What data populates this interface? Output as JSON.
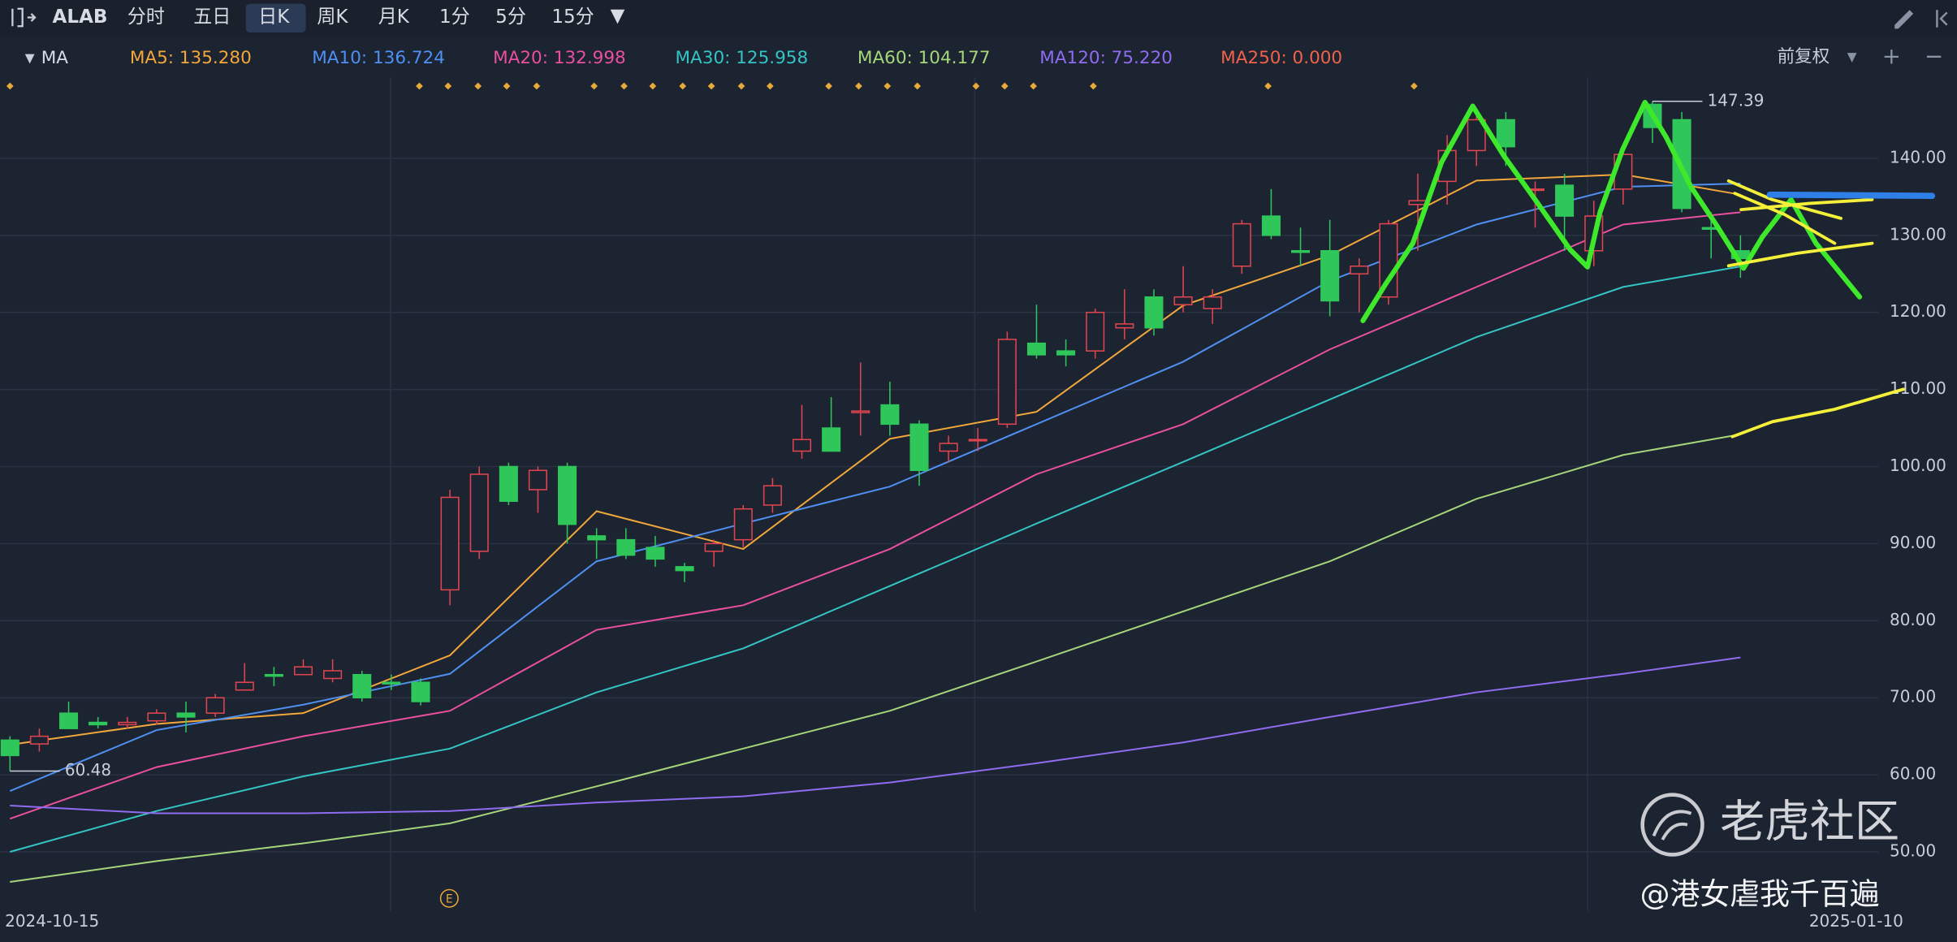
{
  "toolbar": {
    "symbol": "ALAB",
    "periods": [
      "分时",
      "五日",
      "日K",
      "周K",
      "月K",
      "1分",
      "5分",
      "15分"
    ],
    "active": "日K",
    "indicator": "MA",
    "adjust": "前复权"
  },
  "chart_data": {
    "type": "candlestick",
    "categories": [
      "2024-10-15",
      null,
      null,
      null,
      null,
      null,
      null,
      null,
      null,
      null,
      null,
      null,
      null,
      null,
      null,
      null,
      null,
      null,
      null,
      null,
      null,
      null,
      null,
      null,
      null,
      null,
      null,
      null,
      null,
      null,
      null,
      null,
      null,
      null,
      null,
      null,
      null,
      null,
      null,
      null,
      null,
      null,
      null,
      null,
      null,
      null,
      null,
      null,
      null,
      null,
      null,
      null,
      null,
      null,
      null,
      null,
      null,
      null,
      null,
      "2025-01-10"
    ],
    "open": [
      64.5,
      64,
      68,
      66.8,
      66.5,
      67,
      68,
      68,
      71,
      73,
      73,
      72.5,
      73,
      72,
      72,
      84,
      89,
      100,
      97,
      100,
      91,
      90.5,
      89.5,
      87,
      89,
      90.5,
      95,
      102,
      105,
      107,
      108,
      105.5,
      102,
      103.5,
      105.5,
      116,
      115,
      115,
      118,
      122,
      121,
      120.5,
      126,
      132.5,
      128,
      128,
      125,
      122,
      134,
      137,
      141,
      145,
      136,
      136.5,
      128,
      136,
      147,
      145,
      131,
      128
    ],
    "high": [
      65,
      66,
      69.5,
      67.5,
      67.5,
      68.5,
      69.5,
      70.5,
      74.5,
      74,
      75,
      75,
      73.5,
      73,
      72.5,
      97,
      100,
      100.5,
      100,
      100.5,
      92,
      92,
      91,
      87.5,
      90.5,
      95,
      98.5,
      108,
      109,
      113.5,
      111,
      106,
      104,
      105,
      117.5,
      121,
      116.5,
      120.5,
      123,
      123,
      126,
      123,
      132,
      136,
      131,
      132,
      127,
      132,
      138,
      143,
      146,
      146,
      137,
      138,
      134.5,
      141.5,
      147.39,
      146,
      133,
      130
    ],
    "low": [
      60.48,
      63,
      66,
      66,
      66,
      66.5,
      65.5,
      67.5,
      71,
      71.5,
      73,
      72,
      69.5,
      71,
      69,
      82,
      88,
      95,
      94,
      90,
      88,
      88,
      87,
      85,
      87,
      89.5,
      94,
      101,
      102,
      104,
      104,
      97.5,
      100.5,
      102,
      105,
      114,
      113,
      114,
      116.5,
      117,
      120,
      118.5,
      125,
      129.5,
      126,
      119.5,
      120,
      121,
      128,
      134,
      139,
      139,
      131,
      128,
      126,
      134,
      142,
      133,
      127,
      124.5
    ],
    "close": [
      62.5,
      65,
      66,
      66.5,
      66.8,
      68,
      67.5,
      70,
      72,
      72.8,
      74,
      73.5,
      70,
      71.8,
      69.5,
      96,
      99,
      95.5,
      99.5,
      92.5,
      90.5,
      88.5,
      88,
      86.5,
      90,
      94.5,
      97.5,
      103.5,
      102,
      107.2,
      105.5,
      99.5,
      103,
      103.5,
      116.5,
      114.5,
      114.5,
      120,
      118.5,
      118,
      122,
      122,
      131.5,
      130,
      127.8,
      121.5,
      126,
      131.5,
      134.5,
      141,
      145,
      141.5,
      136,
      132.5,
      132.5,
      140.5,
      144,
      133.5,
      130.8,
      127
    ],
    "up_color": "#e0454f",
    "down_color": "#2fc75a",
    "series": [
      {
        "name": "MA5: 135.280",
        "color": "#f2a73b",
        "x": [
          0,
          5,
          10,
          15,
          20,
          25,
          30,
          35,
          40,
          45,
          50,
          55,
          59
        ],
        "values": [
          63.9,
          66.6,
          68,
          75.5,
          94.2,
          89.3,
          103.6,
          107.1,
          120.9,
          127.4,
          137.1,
          137.9,
          135.28
        ]
      },
      {
        "name": "MA10: 136.724",
        "color": "#4f8ff0",
        "x": [
          0,
          5,
          10,
          15,
          20,
          25,
          30,
          35,
          40,
          45,
          50,
          55,
          59
        ],
        "values": [
          57.9,
          65.8,
          69.1,
          73.1,
          87.7,
          92.6,
          97.4,
          105.5,
          113.6,
          124.1,
          131.4,
          136.3,
          136.724
        ]
      },
      {
        "name": "MA20: 132.998",
        "color": "#ea4fa0",
        "x": [
          0,
          5,
          10,
          15,
          20,
          25,
          30,
          35,
          40,
          45,
          50,
          55,
          59
        ],
        "values": [
          54.3,
          61,
          65,
          68.3,
          78.8,
          82,
          89.3,
          99,
          105.5,
          115.2,
          123.3,
          131.4,
          132.998
        ]
      },
      {
        "name": "MA30: 125.958",
        "color": "#35c4c4",
        "x": [
          0,
          5,
          10,
          15,
          20,
          25,
          30,
          35,
          40,
          45,
          50,
          55,
          59
        ],
        "values": [
          50,
          55.3,
          59.8,
          63.4,
          70.7,
          76.4,
          84.5,
          92.6,
          100.6,
          108.7,
          116.8,
          123.3,
          125.958
        ]
      },
      {
        "name": "MA60: 104.177",
        "color": "#a5d67a",
        "x": [
          0,
          5,
          10,
          15,
          20,
          25,
          30,
          35,
          40,
          45,
          50,
          55,
          59
        ],
        "values": [
          46.1,
          48.8,
          51.1,
          53.7,
          58.5,
          63.4,
          68.3,
          74.7,
          81.2,
          87.7,
          95.8,
          101.5,
          104.177
        ]
      },
      {
        "name": "MA120: 75.220",
        "color": "#8f6cf0",
        "x": [
          0,
          5,
          10,
          15,
          20,
          25,
          30,
          35,
          40,
          45,
          50,
          55,
          59
        ],
        "values": [
          56,
          55,
          55,
          55.3,
          56.4,
          57.2,
          59,
          61.5,
          64.2,
          67.5,
          70.7,
          73.1,
          75.22
        ]
      },
      {
        "name": "MA250: 0.000",
        "color": "#f0624a",
        "x": [],
        "values": []
      }
    ],
    "annotations": [
      {
        "text": "147.39",
        "value": 147.39
      },
      {
        "text": "60.48",
        "value": 60.48
      }
    ],
    "ylim": [
      42.35,
      150.5
    ],
    "yticks": [
      {
        "value": 50,
        "label": "50.00"
      },
      {
        "value": 60,
        "label": "60.00"
      },
      {
        "value": 70,
        "label": "70.00"
      },
      {
        "value": 80,
        "label": "80.00"
      },
      {
        "value": 90,
        "label": "90.00"
      },
      {
        "value": 100,
        "label": "100.00"
      },
      {
        "value": 110,
        "label": "110.00"
      },
      {
        "value": 120,
        "label": "120.00"
      },
      {
        "value": 130,
        "label": "130.00"
      },
      {
        "value": 140,
        "label": "140.00"
      }
    ],
    "grid": true
  },
  "watermark": {
    "brand": "老虎社区",
    "author": "@港女虐我千百遍"
  }
}
